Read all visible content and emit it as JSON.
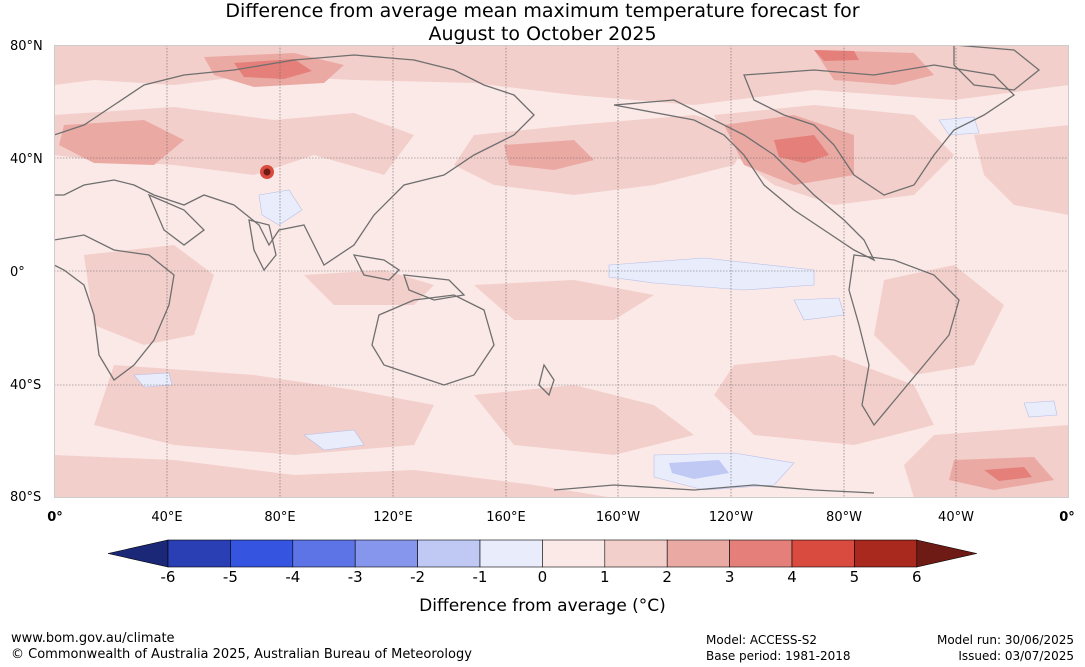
{
  "title_line1": "Difference from average mean maximum temperature forecast for",
  "title_line2": "August to October 2025",
  "lat_labels": [
    "80°N",
    "40°N",
    "0°",
    "40°S",
    "80°S"
  ],
  "lon_labels": [
    "0°",
    "40°E",
    "80°E",
    "120°E",
    "160°E",
    "160°W",
    "120°W",
    "80°W",
    "40°W",
    "0°"
  ],
  "colorbar": {
    "ticks": [
      "-6",
      "-5",
      "-4",
      "-3",
      "-2",
      "-1",
      "0",
      "1",
      "2",
      "3",
      "4",
      "5",
      "6"
    ],
    "label": "Difference from average (°C)",
    "colors": [
      "#1b2878",
      "#2a3fb3",
      "#3554e0",
      "#5c74e6",
      "#8696ec",
      "#c0c8f4",
      "#e8ecfb",
      "#fbe9e7",
      "#f3cfcb",
      "#eba9a4",
      "#e48079",
      "#d94b3f",
      "#a9291f",
      "#6e1a15"
    ]
  },
  "footer": {
    "website": "www.bom.gov.au/climate",
    "copyright": "© Commonwealth of Australia 2025, Australian Bureau of Meteorology",
    "model": "Model: ACCESS-S2",
    "base_period": "Base period: 1981-2018",
    "model_run": "Model run: 30/06/2025",
    "issued": "Issued: 03/07/2025"
  }
}
